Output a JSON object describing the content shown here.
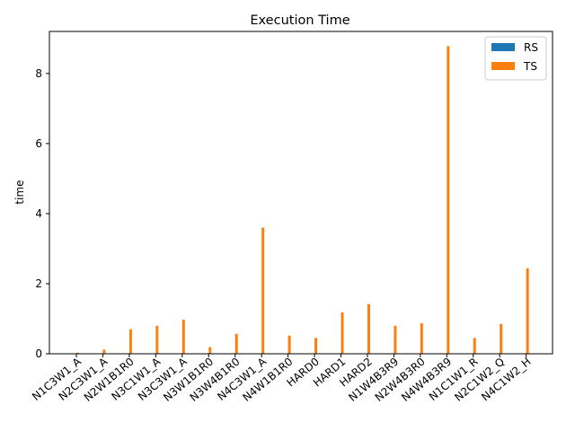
{
  "chart_data": {
    "type": "bar",
    "title": "Execution Time",
    "xlabel": "",
    "ylabel": "time",
    "ylim": [
      0,
      9.2
    ],
    "yticks": [
      0,
      2,
      4,
      6,
      8
    ],
    "grid": false,
    "legend_position": "top-right",
    "categories": [
      "N1C3W1_A",
      "N2C3W1_A",
      "N2W1B1R0",
      "N3C1W1_A",
      "N3C3W1_A",
      "N3W1B1R0",
      "N3W4B1R0",
      "N4C3W1_A",
      "N4W1B1R0",
      "HARD0",
      "HARD1",
      "HARD2",
      "N1W4B3R9",
      "N2W4B3R0",
      "N4W4B3R9",
      "N1C1W1_R",
      "N2C1W2_Q",
      "N4C1W2_H"
    ],
    "series": [
      {
        "name": "RS",
        "color": "#1f77b4",
        "values": [
          0.005,
          0.005,
          0.005,
          0.005,
          0.005,
          0.005,
          0.005,
          0.005,
          0.005,
          0.005,
          0.005,
          0.005,
          0.005,
          0.005,
          0.005,
          0.005,
          0.005,
          0.005
        ]
      },
      {
        "name": "TS",
        "color": "#ff7f0e",
        "values": [
          0.03,
          0.12,
          0.7,
          0.8,
          0.97,
          0.19,
          0.57,
          3.6,
          0.52,
          0.45,
          1.18,
          1.42,
          0.8,
          0.87,
          8.78,
          0.45,
          0.85,
          2.44
        ]
      }
    ]
  }
}
